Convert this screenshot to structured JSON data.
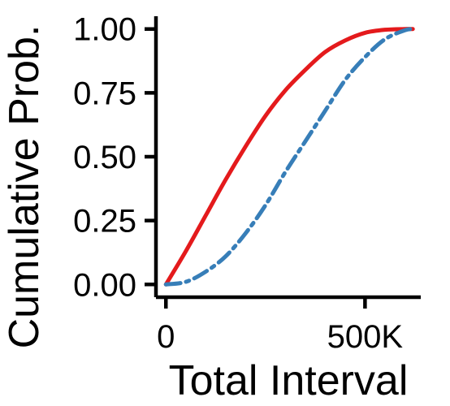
{
  "chart_data": {
    "type": "line",
    "title": "",
    "xlabel": "Total Interval",
    "ylabel": "Cumulative Prob.",
    "xlim": [
      -25000,
      640000
    ],
    "ylim": [
      -0.05,
      1.05
    ],
    "x_ticks": [
      {
        "value": 0,
        "label": "0"
      },
      {
        "value": 500000,
        "label": "500K"
      }
    ],
    "y_ticks": [
      {
        "value": 0,
        "label": "0.00"
      },
      {
        "value": 0.25,
        "label": "0.25"
      },
      {
        "value": 0.5,
        "label": "0.50"
      },
      {
        "value": 0.75,
        "label": "0.75"
      },
      {
        "value": 1,
        "label": "1.00"
      }
    ],
    "grid": false,
    "legend": "none",
    "series": [
      {
        "color": "#e41a1c",
        "dash": "solid",
        "x": [
          0,
          50000,
          100000,
          150000,
          200000,
          250000,
          300000,
          350000,
          400000,
          450000,
          500000,
          550000,
          600000,
          620000
        ],
        "y": [
          0.0,
          0.13,
          0.27,
          0.41,
          0.54,
          0.66,
          0.76,
          0.84,
          0.91,
          0.955,
          0.985,
          0.997,
          1.0,
          1.0
        ]
      },
      {
        "color": "#377eb8",
        "dash": "dashed",
        "x": [
          0,
          50000,
          100000,
          150000,
          200000,
          250000,
          300000,
          350000,
          400000,
          450000,
          500000,
          550000,
          600000,
          620000
        ],
        "y": [
          0.0,
          0.01,
          0.05,
          0.11,
          0.2,
          0.31,
          0.44,
          0.56,
          0.68,
          0.8,
          0.89,
          0.96,
          0.995,
          1.0
        ]
      }
    ]
  }
}
